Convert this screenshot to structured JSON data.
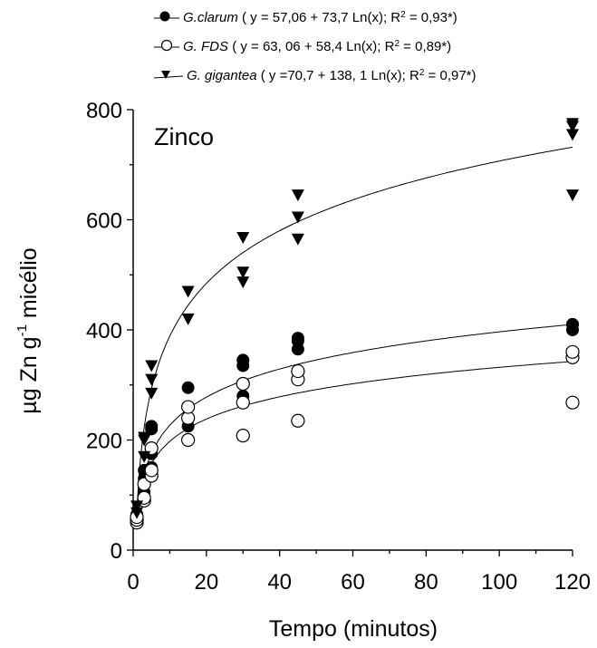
{
  "chart_data": {
    "type": "scatter",
    "annotation": "Zinco",
    "xlabel": "Tempo (minutos)",
    "ylabel": "µg Zn g-1 micélio",
    "ylabel_parts": {
      "main": "µg Zn g",
      "sup": "-1",
      "rest": " micélio"
    },
    "xlim": [
      0,
      120
    ],
    "ylim": [
      0,
      800
    ],
    "xticks": [
      "0",
      "20",
      "40",
      "60",
      "80",
      "100",
      "120"
    ],
    "yticks": [
      "0",
      "200",
      "400",
      "600",
      "800"
    ],
    "grid": false,
    "legend_position": "top",
    "series": [
      {
        "name": "G.clarum",
        "marker": "filled-circle",
        "equation": "( y = 57,06 + 73,7 Ln(x); R2 = 0,93*)",
        "fit": {
          "a": 57.06,
          "b": 73.7
        },
        "points": [
          [
            1,
            65
          ],
          [
            1,
            60
          ],
          [
            1,
            55
          ],
          [
            3,
            105
          ],
          [
            3,
            130
          ],
          [
            3,
            145
          ],
          [
            5,
            150
          ],
          [
            5,
            175
          ],
          [
            5,
            220
          ],
          [
            5,
            225
          ],
          [
            15,
            225
          ],
          [
            15,
            240
          ],
          [
            15,
            295
          ],
          [
            30,
            280
          ],
          [
            30,
            335
          ],
          [
            30,
            345
          ],
          [
            45,
            365
          ],
          [
            45,
            380
          ],
          [
            45,
            385
          ],
          [
            120,
            400
          ],
          [
            120,
            410
          ],
          [
            120,
            410
          ]
        ]
      },
      {
        "name": "G. FDS",
        "marker": "open-circle",
        "equation": "( y = 63, 06 + 58,4  Ln(x); R2 = 0,89*)",
        "fit": {
          "a": 63.06,
          "b": 58.4
        },
        "points": [
          [
            1,
            50
          ],
          [
            1,
            55
          ],
          [
            1,
            60
          ],
          [
            3,
            90
          ],
          [
            3,
            95
          ],
          [
            3,
            120
          ],
          [
            5,
            135
          ],
          [
            5,
            145
          ],
          [
            5,
            185
          ],
          [
            15,
            200
          ],
          [
            15,
            240
          ],
          [
            15,
            260
          ],
          [
            30,
            208
          ],
          [
            30,
            268
          ],
          [
            30,
            302
          ],
          [
            45,
            235
          ],
          [
            45,
            310
          ],
          [
            45,
            325
          ],
          [
            120,
            268
          ],
          [
            120,
            350
          ],
          [
            120,
            360
          ]
        ]
      },
      {
        "name": "G. gigantea",
        "marker": "filled-down-triangle",
        "equation": "( y =70,7 + 138, 1 Ln(x); R2 = 0,97*)",
        "fit": {
          "a": 70.7,
          "b": 138.1
        },
        "points": [
          [
            1,
            68
          ],
          [
            1,
            80
          ],
          [
            3,
            170
          ],
          [
            3,
            200
          ],
          [
            3,
            205
          ],
          [
            5,
            285
          ],
          [
            5,
            310
          ],
          [
            5,
            335
          ],
          [
            15,
            420
          ],
          [
            15,
            470
          ],
          [
            30,
            487
          ],
          [
            30,
            505
          ],
          [
            30,
            568
          ],
          [
            45,
            565
          ],
          [
            45,
            605
          ],
          [
            45,
            645
          ],
          [
            120,
            645
          ],
          [
            120,
            755
          ],
          [
            120,
            770
          ],
          [
            120,
            775
          ]
        ]
      }
    ]
  }
}
